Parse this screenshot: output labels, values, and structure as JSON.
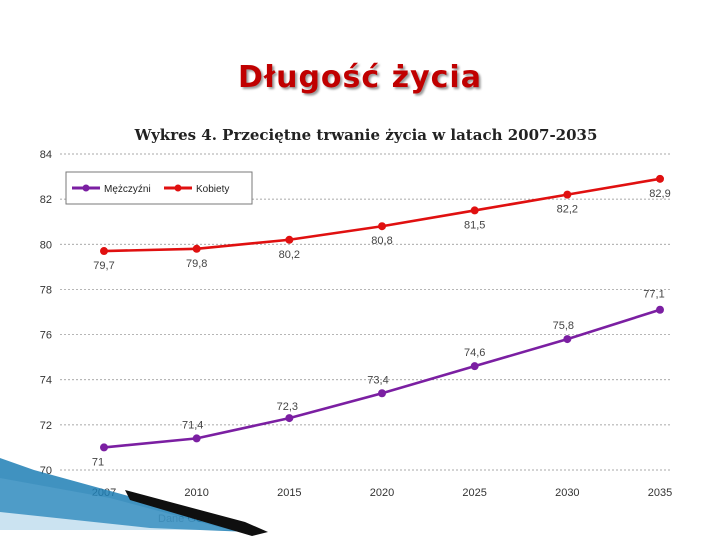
{
  "slide": {
    "title": "Długość życia",
    "source_note": "Dane GUS"
  },
  "colors": {
    "title": "#c00000",
    "men": "#7b1fa2",
    "women": "#e01010",
    "grid": "#8c8c8c",
    "axis_text": "#333333"
  },
  "chart_data": {
    "type": "line",
    "title": "Wykres 4. Przeciętne trwanie życia w latach 2007-2035",
    "xlabel": "",
    "ylabel": "",
    "x": [
      "2007",
      "2010",
      "2015",
      "2020",
      "2025",
      "2030",
      "2035"
    ],
    "ylim": [
      70,
      84
    ],
    "yticks": [
      70,
      72,
      74,
      76,
      78,
      80,
      82,
      84
    ],
    "grid": true,
    "legend_position": "top-left",
    "series": [
      {
        "name": "Mężczyźni",
        "color": "#7b1fa2",
        "values": [
          71.0,
          71.4,
          72.3,
          73.4,
          74.6,
          75.8,
          77.1
        ],
        "labels": [
          "71",
          "71,4",
          "72,3",
          "73,4",
          "74,6",
          "75,8",
          "77,1"
        ]
      },
      {
        "name": "Kobiety",
        "color": "#e01010",
        "values": [
          79.7,
          79.8,
          80.2,
          80.8,
          81.5,
          82.2,
          82.9
        ],
        "labels": [
          "79,7",
          "79,8",
          "80,2",
          "80,8",
          "81,5",
          "82,2",
          "82,9"
        ]
      }
    ]
  }
}
